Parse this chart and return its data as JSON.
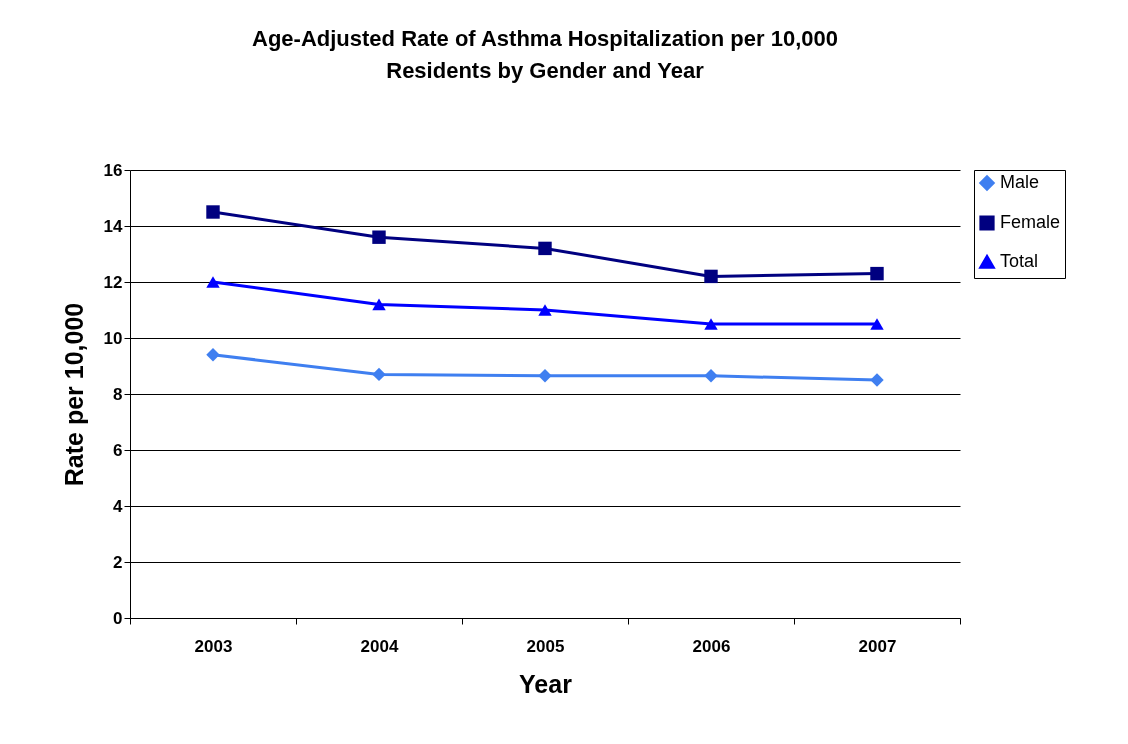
{
  "chart_data": {
    "type": "line",
    "title": "Age-Adjusted Rate of Asthma Hospitalization per 10,000 Residents by Gender and Year",
    "xlabel": "Year",
    "ylabel": "Rate per 10,000",
    "categories": [
      "2003",
      "2004",
      "2005",
      "2006",
      "2007"
    ],
    "series": [
      {
        "name": "Male",
        "color": "#3f7ff0",
        "marker": "diamond",
        "values": [
          9.4,
          8.7,
          8.65,
          8.65,
          8.5
        ]
      },
      {
        "name": "Female",
        "color": "#000080",
        "marker": "square",
        "values": [
          14.5,
          13.6,
          13.2,
          12.2,
          12.3
        ]
      },
      {
        "name": "Total",
        "color": "#0000ff",
        "marker": "triangle",
        "values": [
          12.0,
          11.2,
          11.0,
          10.5,
          10.5
        ]
      }
    ],
    "ylim": [
      0,
      16
    ],
    "yticks": [
      0,
      2,
      4,
      6,
      8,
      10,
      12,
      14,
      16
    ],
    "grid": "y",
    "legend": "right"
  }
}
